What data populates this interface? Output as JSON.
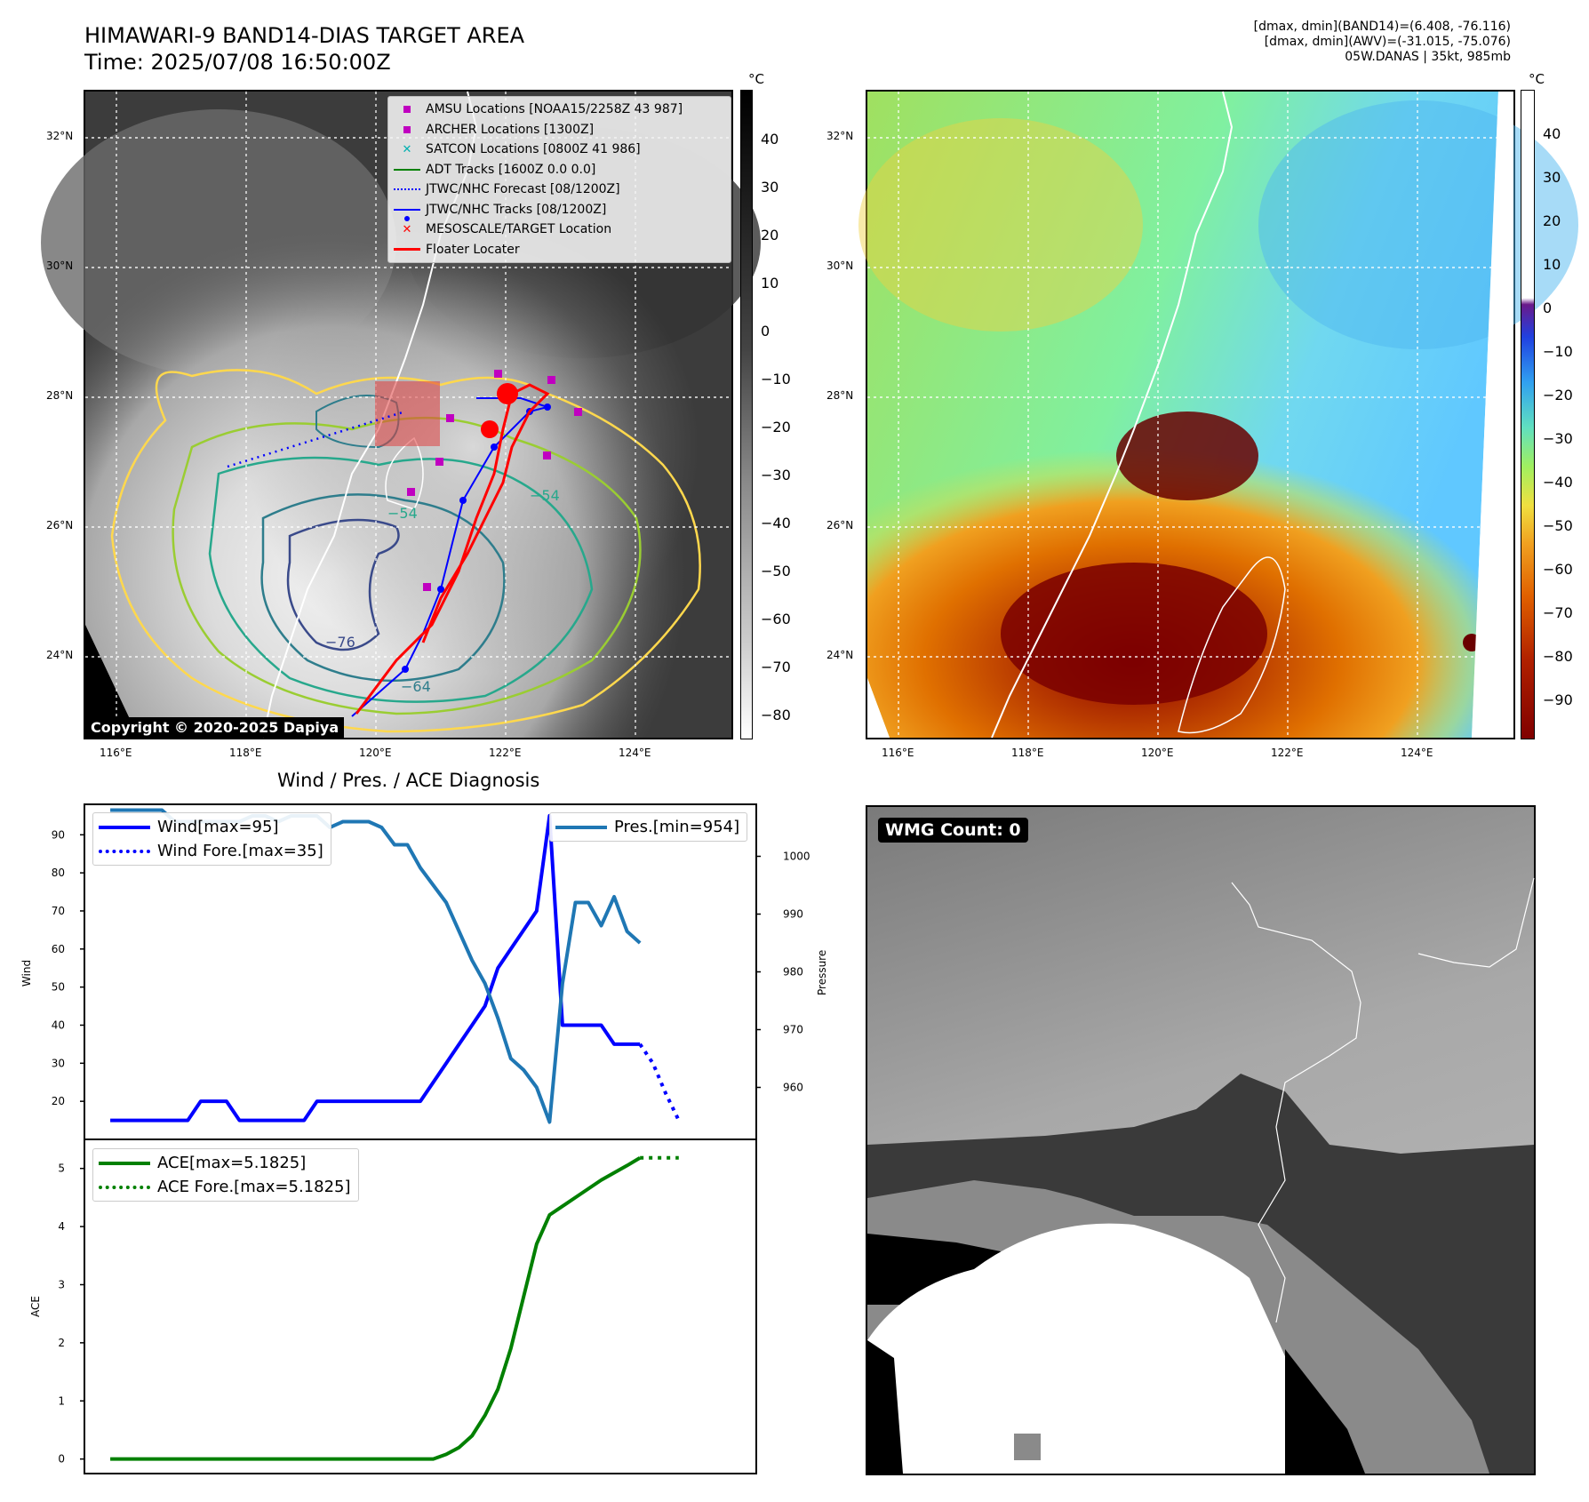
{
  "header": {
    "title": "HIMAWARI-9 BAND14-DIAS TARGET AREA",
    "time": "Time: 2025/07/08 16:50:00Z",
    "info1": "[dmax, dmin](BAND14)=(6.408, -76.116)",
    "info2": "[dmax, dmin](AWV)=(-31.015, -75.076)",
    "info3": "05W.DANAS | 35kt, 985mb"
  },
  "map_axes": {
    "lon_labels": [
      "116°E",
      "118°E",
      "120°E",
      "122°E",
      "124°E"
    ],
    "lat_labels": [
      "32°N",
      "30°N",
      "28°N",
      "26°N",
      "24°N"
    ]
  },
  "map_left": {
    "colorbar_unit": "°C",
    "colorbar_ticks": [
      "40",
      "30",
      "20",
      "10",
      "0",
      "−10",
      "−20",
      "−30",
      "−40",
      "−50",
      "−60",
      "−70",
      "−80"
    ],
    "copyright": "Copyright © 2020-2025 Dapiya",
    "contour_labels": [
      "−54",
      "−54",
      "−76",
      "−64"
    ],
    "legend": [
      {
        "label": "AMSU Locations [NOAA15/2258Z 43 987]",
        "color": "#c000c0",
        "marker": "square"
      },
      {
        "label": "ARCHER Locations [1300Z]",
        "color": "#c000c0",
        "marker": "square"
      },
      {
        "label": "SATCON Locations [0800Z 41 986]",
        "color": "#00b0b0",
        "marker": "x"
      },
      {
        "label": "ADT Tracks [1600Z 0.0 0.0]",
        "color": "#008000",
        "marker": "line"
      },
      {
        "label": "JTWC/NHC Forecast [08/1200Z]",
        "color": "#0000ff",
        "marker": "dotted"
      },
      {
        "label": "JTWC/NHC Tracks [08/1200Z]",
        "color": "#0000ff",
        "marker": "line-dot"
      },
      {
        "label": "MESOSCALE/TARGET Location",
        "color": "#ff0000",
        "marker": "x"
      },
      {
        "label": "Floater Locater",
        "color": "#ff0000",
        "marker": "line"
      }
    ]
  },
  "map_right": {
    "colorbar_unit": "°C",
    "colorbar_ticks": [
      "40",
      "30",
      "20",
      "10",
      "0",
      "−10",
      "−20",
      "−30",
      "−40",
      "−50",
      "−60",
      "−70",
      "−80",
      "−90"
    ]
  },
  "bottom_right": {
    "badge": "WMG Count: 0"
  },
  "chart_data": [
    {
      "type": "line",
      "title": "Wind / Pres. / ACE Diagnosis",
      "ylabel": "Wind",
      "ylim": [
        10,
        98
      ],
      "yticks": [
        20,
        30,
        40,
        50,
        60,
        70,
        80,
        90
      ],
      "y2label": "Pressure",
      "y2lim": [
        951,
        1009
      ],
      "y2ticks": [
        960,
        970,
        980,
        990,
        1000
      ],
      "xlim": [
        0,
        52
      ],
      "legend_left": [
        "Wind[max=95]",
        "Wind Fore.[max=35]"
      ],
      "legend_right": [
        "Pres.[min=954]"
      ],
      "series": [
        {
          "name": "Wind[max=95]",
          "color": "#0000ff",
          "style": "solid",
          "axis": "left",
          "x": [
            2,
            3,
            4,
            5,
            6,
            7,
            8,
            9,
            10,
            11,
            12,
            13,
            14,
            15,
            16,
            17,
            18,
            19,
            20,
            21,
            22,
            23,
            24,
            25,
            26,
            27,
            28,
            29,
            30,
            31,
            32,
            33,
            34,
            35,
            36,
            37,
            38,
            39,
            40,
            41,
            42,
            43
          ],
          "y": [
            15,
            15,
            15,
            15,
            15,
            15,
            15,
            20,
            20,
            20,
            15,
            15,
            15,
            15,
            15,
            15,
            20,
            20,
            20,
            20,
            20,
            20,
            20,
            20,
            20,
            25,
            30,
            35,
            40,
            45,
            55,
            60,
            65,
            70,
            95,
            40,
            40,
            40,
            40,
            35,
            35,
            35
          ]
        },
        {
          "name": "Wind Fore.[max=35]",
          "color": "#0000ff",
          "style": "dotted",
          "axis": "left",
          "x": [
            43,
            44,
            45,
            46
          ],
          "y": [
            35,
            30,
            22,
            15
          ]
        },
        {
          "name": "Pres.[min=954]",
          "color": "#1f77b4",
          "style": "solid",
          "axis": "right",
          "x": [
            2,
            3,
            4,
            5,
            6,
            7,
            8,
            9,
            10,
            11,
            12,
            13,
            14,
            15,
            16,
            17,
            18,
            19,
            20,
            21,
            22,
            23,
            24,
            25,
            26,
            27,
            28,
            29,
            30,
            31,
            32,
            33,
            34,
            35,
            35.5,
            36,
            37,
            38,
            39,
            40,
            41,
            42,
            43
          ],
          "y": [
            1008,
            1008,
            1008,
            1008,
            1008,
            1006,
            1006,
            1006,
            1006,
            1006,
            1006,
            1007,
            1007,
            1006,
            1007,
            1007,
            1007,
            1005,
            1006,
            1006,
            1006,
            1005,
            1002,
            1002,
            998,
            995,
            992,
            987,
            982,
            978,
            972,
            965,
            963,
            960,
            957,
            954,
            978,
            992,
            992,
            988,
            993,
            987,
            985
          ]
        }
      ]
    },
    {
      "type": "line",
      "ylabel": "ACE",
      "ylim": [
        -0.25,
        5.5
      ],
      "yticks": [
        0,
        1,
        2,
        3,
        4,
        5
      ],
      "xlim": [
        0,
        52
      ],
      "legend": [
        "ACE[max=5.1825]",
        "ACE Fore.[max=5.1825]"
      ],
      "series": [
        {
          "name": "ACE[max=5.1825]",
          "color": "#008000",
          "style": "solid",
          "x": [
            2,
            5,
            10,
            15,
            20,
            25,
            27,
            28,
            29,
            30,
            31,
            32,
            33,
            34,
            35,
            36,
            37,
            38,
            40,
            42,
            43
          ],
          "y": [
            0,
            0,
            0,
            0,
            0,
            0,
            0,
            0.08,
            0.2,
            0.4,
            0.75,
            1.2,
            1.9,
            2.8,
            3.7,
            4.2,
            4.35,
            4.5,
            4.8,
            5.05,
            5.1825
          ]
        },
        {
          "name": "ACE Fore.[max=5.1825]",
          "color": "#008000",
          "style": "dotted",
          "x": [
            43,
            44,
            45,
            46
          ],
          "y": [
            5.1825,
            5.1825,
            5.1825,
            5.1825
          ]
        }
      ]
    }
  ]
}
